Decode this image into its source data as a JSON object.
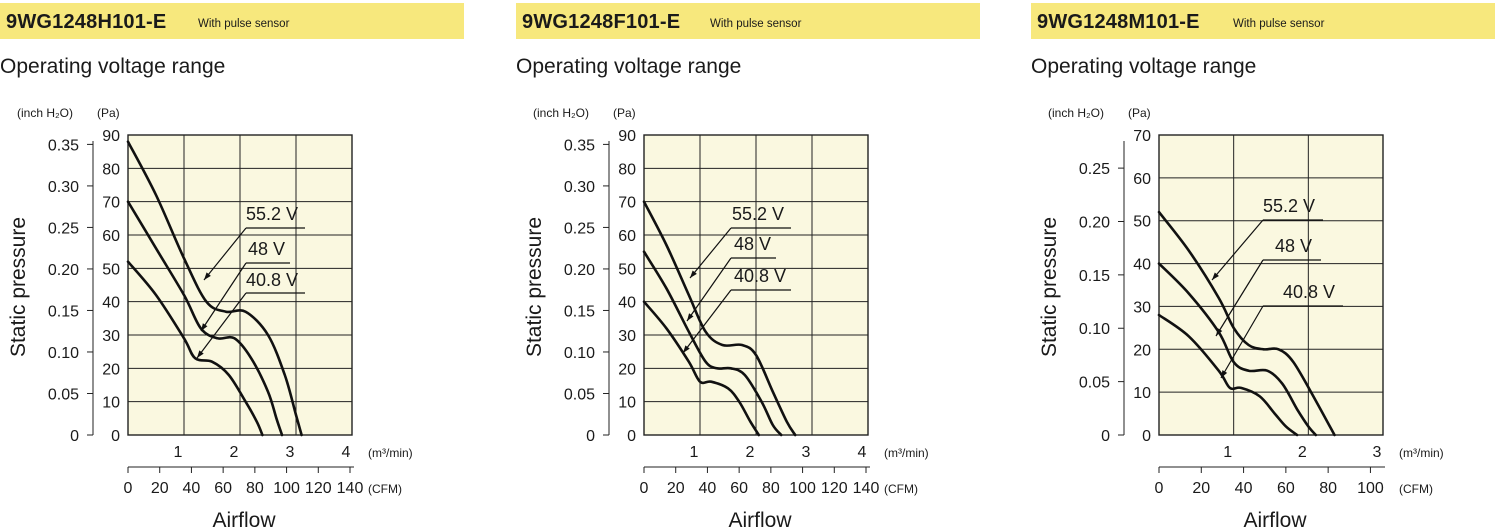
{
  "panels": [
    {
      "model": "9WG1248H101-E",
      "subtitle": "With pulse sensor",
      "heading": "Operating voltage range",
      "accent": "#f7e87d",
      "plot_bg": "#faf8e0"
    },
    {
      "model": "9WG1248F101-E",
      "subtitle": "With pulse sensor",
      "heading": "Operating voltage range",
      "accent": "#f7e87d",
      "plot_bg": "#faf8e0"
    },
    {
      "model": "9WG1248M101-E",
      "subtitle": "With pulse sensor",
      "heading": "Operating voltage range",
      "accent": "#f7e87d",
      "plot_bg": "#faf8e0"
    }
  ],
  "chart_data": [
    {
      "type": "line",
      "title": "9WG1248H101-E",
      "xlabel": "Airflow",
      "ylabel": "Static pressure",
      "x_unit": "(m³/min)",
      "x2_unit": "(CFM)",
      "y_unit": "(Pa)",
      "y2_unit": "(inch H2O)",
      "xlim": [
        0,
        4
      ],
      "ylim": [
        0,
        90
      ],
      "x_ticks": [
        "1",
        "2",
        "3",
        "4"
      ],
      "x_ticks_cfm": [
        "0",
        "20",
        "40",
        "60",
        "80",
        "100",
        "120",
        "140"
      ],
      "y_ticks": [
        "0",
        "10",
        "20",
        "30",
        "40",
        "50",
        "60",
        "70",
        "80",
        "90"
      ],
      "y_ticks_inch": [
        "0",
        "0.05",
        "0.10",
        "0.15",
        "0.20",
        "0.25",
        "0.30",
        "0.35"
      ],
      "grid": true,
      "series": [
        {
          "name": "55.2 V",
          "x": [
            0,
            0.5,
            1.0,
            1.4,
            1.75,
            2.1,
            2.5,
            2.8,
            3.0,
            3.1
          ],
          "y": [
            88,
            72,
            53,
            40,
            37,
            37,
            30,
            18,
            6,
            0
          ]
        },
        {
          "name": "48 V",
          "x": [
            0,
            0.5,
            1.0,
            1.3,
            1.6,
            1.9,
            2.2,
            2.5,
            2.65,
            2.75
          ],
          "y": [
            70,
            56,
            42,
            32,
            29,
            29,
            23,
            13,
            5,
            0
          ]
        },
        {
          "name": "40.8 V",
          "x": [
            0,
            0.5,
            1.0,
            1.2,
            1.5,
            1.8,
            2.1,
            2.3,
            2.4
          ],
          "y": [
            52,
            42,
            29,
            23,
            22,
            18,
            10,
            4,
            0
          ]
        }
      ]
    },
    {
      "type": "line",
      "title": "9WG1248F101-E",
      "xlabel": "Airflow",
      "ylabel": "Static pressure",
      "x_unit": "(m³/min)",
      "x2_unit": "(CFM)",
      "y_unit": "(Pa)",
      "y2_unit": "(inch H2O)",
      "xlim": [
        0,
        4
      ],
      "ylim": [
        0,
        90
      ],
      "x_ticks": [
        "1",
        "2",
        "3",
        "4"
      ],
      "x_ticks_cfm": [
        "0",
        "20",
        "40",
        "60",
        "80",
        "100",
        "120",
        "140"
      ],
      "y_ticks": [
        "0",
        "10",
        "20",
        "30",
        "40",
        "50",
        "60",
        "70",
        "80",
        "90"
      ],
      "y_ticks_inch": [
        "0",
        "0.05",
        "0.10",
        "0.15",
        "0.20",
        "0.25",
        "0.30",
        "0.35"
      ],
      "grid": true,
      "series": [
        {
          "name": "55.2 V",
          "x": [
            0,
            0.4,
            0.8,
            1.1,
            1.4,
            1.75,
            2.0,
            2.3,
            2.55,
            2.7
          ],
          "y": [
            70,
            57,
            42,
            31,
            27,
            27,
            24,
            13,
            4,
            0
          ]
        },
        {
          "name": "48 V",
          "x": [
            0,
            0.4,
            0.8,
            1.1,
            1.3,
            1.55,
            1.8,
            2.1,
            2.3,
            2.45
          ],
          "y": [
            55,
            44,
            31,
            22,
            20,
            20,
            18,
            10,
            3,
            0
          ]
        },
        {
          "name": "40.8 V",
          "x": [
            0,
            0.4,
            0.8,
            1.0,
            1.2,
            1.5,
            1.7,
            1.9,
            2.05
          ],
          "y": [
            40,
            32,
            22,
            16,
            16,
            14,
            10,
            4,
            0
          ]
        }
      ]
    },
    {
      "type": "line",
      "title": "9WG1248M101-E",
      "xlabel": "Airflow",
      "ylabel": "Static pressure",
      "x_unit": "(m³/min)",
      "x2_unit": "(CFM)",
      "y_unit": "(Pa)",
      "y2_unit": "(inch H2O)",
      "xlim": [
        0,
        3
      ],
      "ylim": [
        0,
        70
      ],
      "x_ticks": [
        "1",
        "2",
        "3"
      ],
      "x_ticks_cfm": [
        "0",
        "20",
        "40",
        "60",
        "80",
        "100"
      ],
      "y_ticks": [
        "0",
        "10",
        "20",
        "30",
        "40",
        "50",
        "60",
        "70"
      ],
      "y_ticks_inch": [
        "0",
        "0.05",
        "0.10",
        "0.15",
        "0.20",
        "0.25"
      ],
      "grid": true,
      "series": [
        {
          "name": "55.2 V",
          "x": [
            0,
            0.4,
            0.8,
            1.0,
            1.2,
            1.4,
            1.6,
            1.8,
            2.1,
            2.35
          ],
          "y": [
            52,
            43,
            32,
            25,
            21,
            20,
            20,
            17,
            8,
            0
          ]
        },
        {
          "name": "48 V",
          "x": [
            0,
            0.4,
            0.8,
            1.0,
            1.2,
            1.45,
            1.65,
            1.85,
            2.0,
            2.1
          ],
          "y": [
            40,
            33,
            24,
            17,
            15,
            15,
            12,
            6,
            2,
            0
          ]
        },
        {
          "name": "40.8 V",
          "x": [
            0,
            0.4,
            0.8,
            0.95,
            1.1,
            1.35,
            1.55,
            1.7,
            1.85
          ],
          "y": [
            28,
            23,
            15,
            11,
            11,
            9,
            5,
            2,
            0
          ]
        }
      ]
    }
  ]
}
